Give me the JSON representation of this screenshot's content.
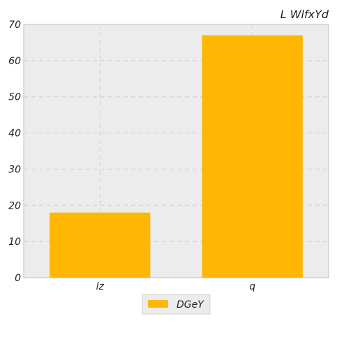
{
  "chart_data": {
    "type": "bar",
    "title": "L WlfxYd",
    "xlabel": "",
    "ylabel": "",
    "categories": [
      "lz",
      "q"
    ],
    "series": [
      {
        "name": "DGeY",
        "values": [
          18,
          67
        ],
        "color": "#ffb703"
      }
    ],
    "ylim": [
      0,
      70
    ],
    "yticks": [
      0,
      10,
      20,
      30,
      40,
      50,
      60,
      70
    ],
    "grid": true,
    "legend_position": "bottom-center",
    "background_color": "#ececec",
    "grid_color": "#d4d4d4"
  }
}
